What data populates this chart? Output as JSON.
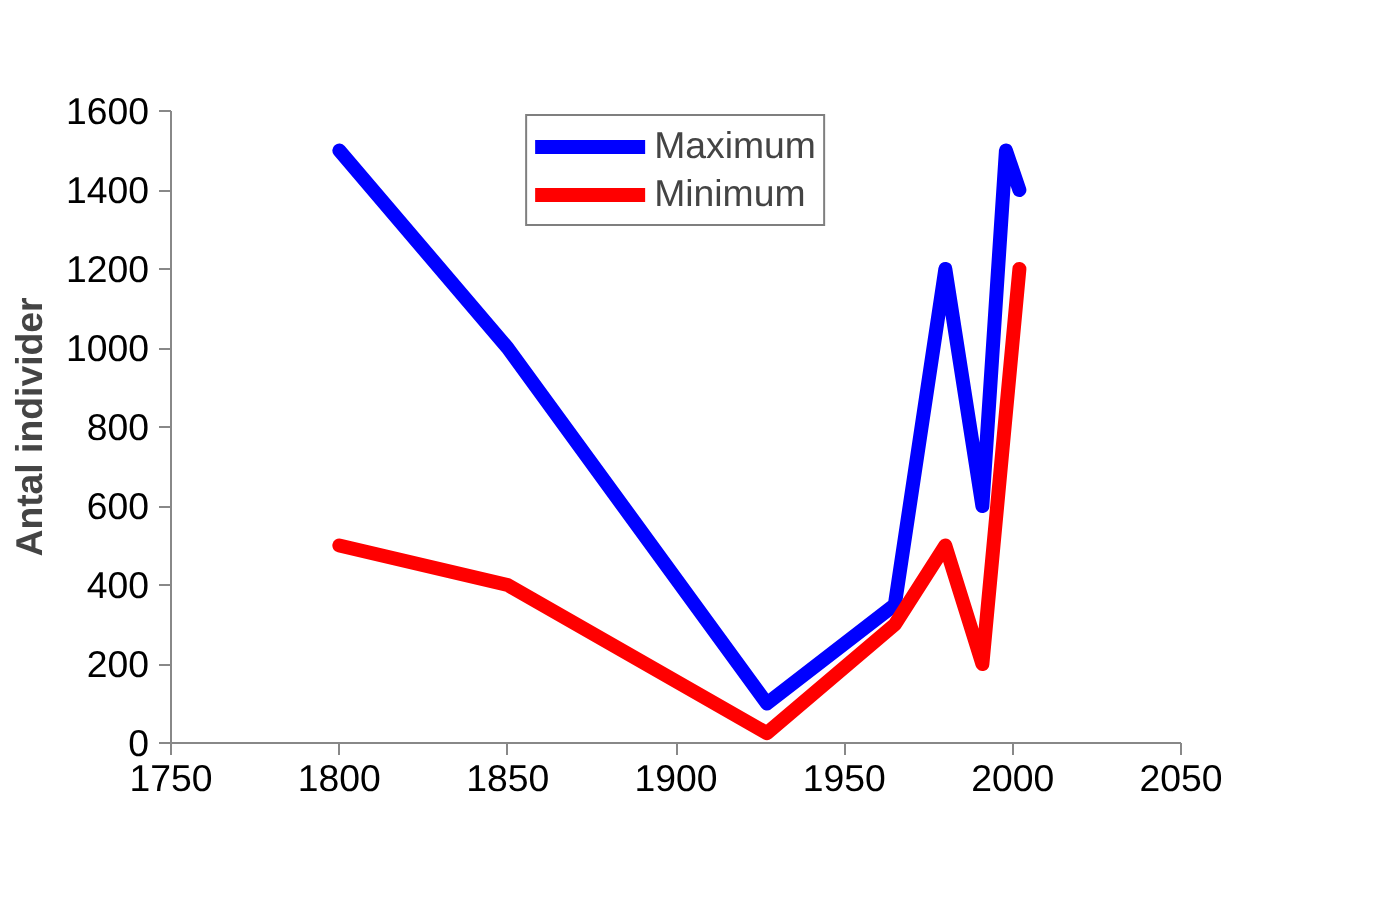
{
  "chart_data": {
    "type": "line",
    "ylabel": "Antal individer",
    "xlim": [
      1750,
      2050
    ],
    "xticks": [
      1750,
      1800,
      1850,
      1900,
      1950,
      2000,
      2050
    ],
    "ylim": [
      0,
      1600
    ],
    "yticks": [
      0,
      200,
      400,
      600,
      800,
      1000,
      1200,
      1400,
      1600
    ],
    "grid": false,
    "legend": "top",
    "series": [
      {
        "name": "Maximum",
        "color": "#0000ff",
        "x": [
          1800,
          1850,
          1927,
          1965,
          1980,
          1991,
          1998,
          2002
        ],
        "values": [
          1500,
          1000,
          100,
          350,
          1200,
          600,
          1500,
          1400
        ]
      },
      {
        "name": "Minimum",
        "color": "#ff0000",
        "x": [
          1800,
          1850,
          1927,
          1965,
          1980,
          1991,
          2002
        ],
        "values": [
          500,
          400,
          25,
          300,
          500,
          200,
          1200
        ]
      }
    ]
  }
}
